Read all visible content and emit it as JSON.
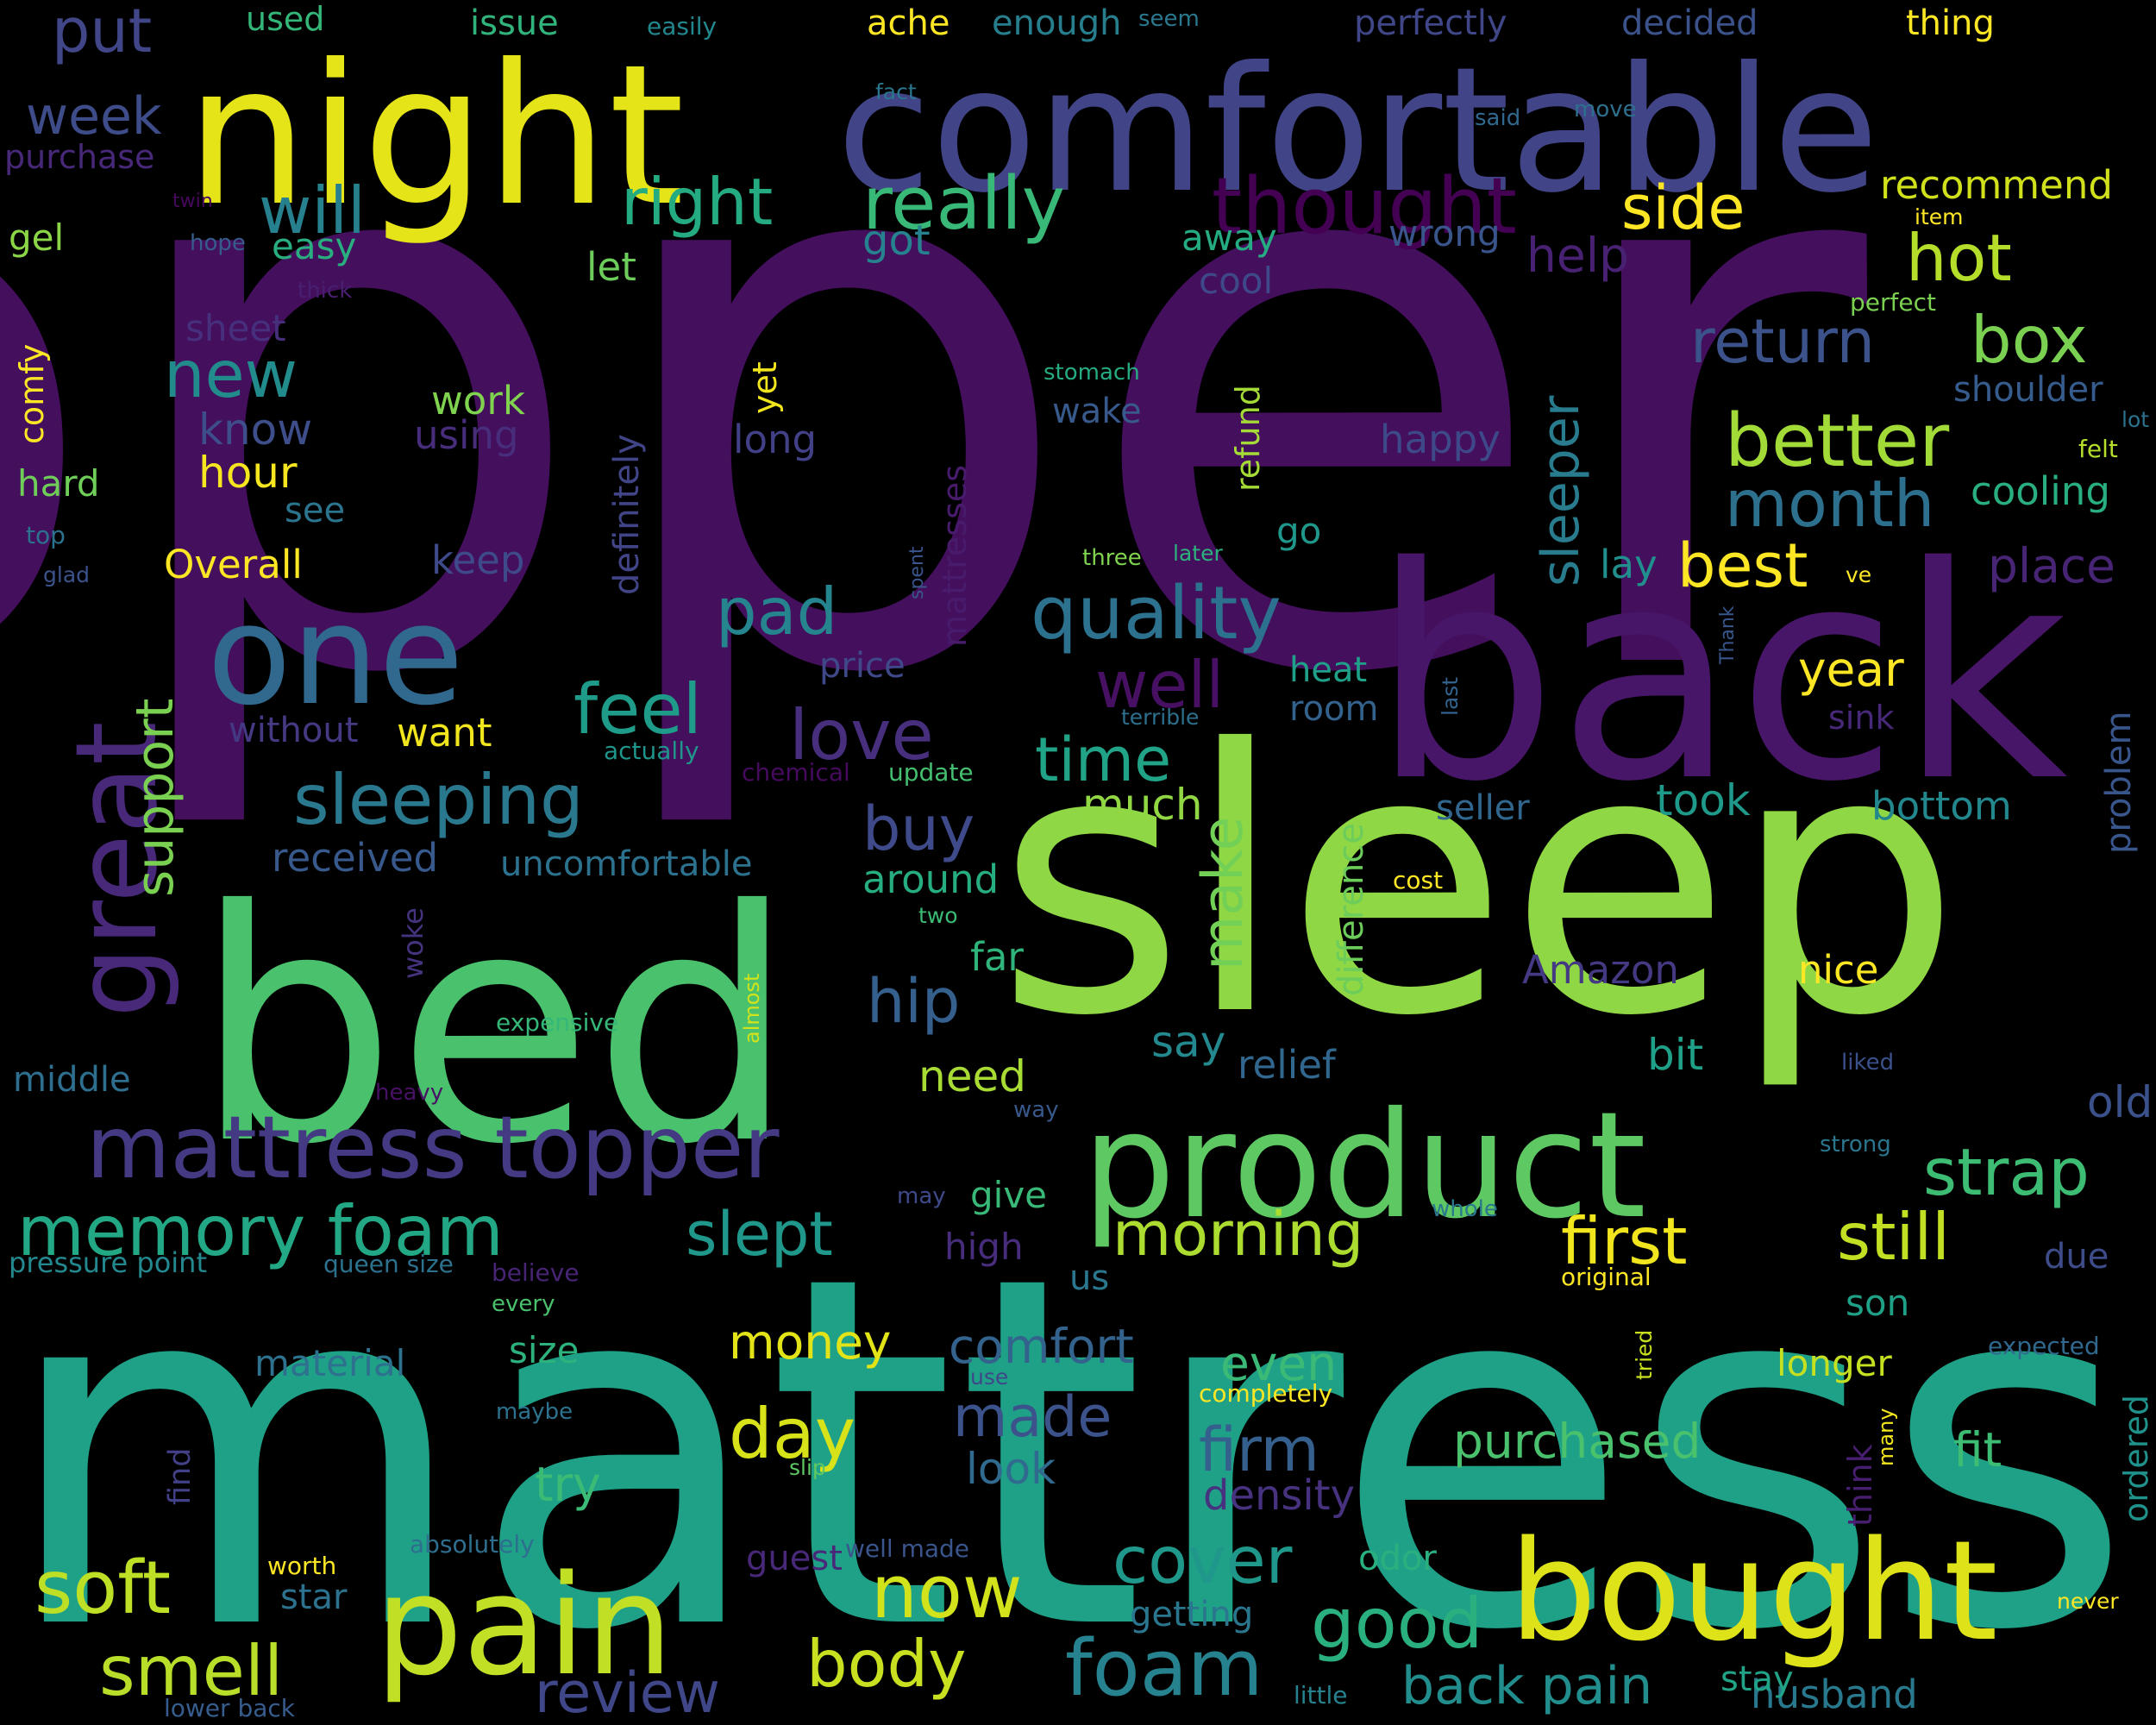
{
  "background": "#000000",
  "words": [
    {
      "text": "topper",
      "weight": 1.0,
      "color": "#440f5d"
    },
    {
      "text": "mattress",
      "weight": 0.92,
      "color": "#1fa188"
    },
    {
      "text": "sleep",
      "weight": 0.74,
      "color": "#8fd744"
    },
    {
      "text": "bed",
      "weight": 0.62,
      "color": "#4ac16d"
    },
    {
      "text": "back",
      "weight": 0.56,
      "color": "#481668"
    },
    {
      "text": "night",
      "weight": 0.5,
      "color": "#e5e419"
    },
    {
      "text": "comfortable",
      "weight": 0.48,
      "color": "#414487"
    },
    {
      "text": "product",
      "weight": 0.4,
      "color": "#5ec962"
    },
    {
      "text": "bought",
      "weight": 0.36,
      "color": "#dde318"
    },
    {
      "text": "pain",
      "weight": 0.36,
      "color": "#c0df25"
    },
    {
      "text": "one",
      "weight": 0.34,
      "color": "#31688e"
    },
    {
      "text": "great",
      "weight": 0.28,
      "color": "#482878"
    },
    {
      "text": "mattress topper",
      "weight": 0.2,
      "color": "#443a83"
    },
    {
      "text": "thought",
      "weight": 0.18,
      "color": "#440154"
    },
    {
      "text": "really",
      "weight": 0.17,
      "color": "#38b977"
    },
    {
      "text": "better",
      "weight": 0.17,
      "color": "#a2da37"
    },
    {
      "text": "memory foam",
      "weight": 0.16,
      "color": "#22a884"
    },
    {
      "text": "foam",
      "weight": 0.18,
      "color": "#26828e"
    },
    {
      "text": "quality",
      "weight": 0.16,
      "color": "#2c728e"
    },
    {
      "text": "sleeping",
      "weight": 0.16,
      "color": "#2a788e"
    },
    {
      "text": "hot",
      "weight": 0.15,
      "color": "#b5de2b"
    },
    {
      "text": "well",
      "weight": 0.15,
      "color": "#471063"
    },
    {
      "text": "right",
      "weight": 0.15,
      "color": "#25ab82"
    },
    {
      "text": "box",
      "weight": 0.15,
      "color": "#7ad151"
    },
    {
      "text": "pad",
      "weight": 0.15,
      "color": "#25848e"
    },
    {
      "text": "love",
      "weight": 0.15,
      "color": "#472f7d"
    },
    {
      "text": "feel",
      "weight": 0.15,
      "color": "#1e9c89"
    },
    {
      "text": "good",
      "weight": 0.15,
      "color": "#2ab07f"
    },
    {
      "text": "cover",
      "weight": 0.15,
      "color": "#1f988b"
    },
    {
      "text": "now",
      "weight": 0.15,
      "color": "#d2e21b"
    },
    {
      "text": "soft",
      "weight": 0.15,
      "color": "#bddf26"
    },
    {
      "text": "smell",
      "weight": 0.14,
      "color": "#b8de29"
    },
    {
      "text": "first",
      "weight": 0.14,
      "color": "#f1e51d"
    },
    {
      "text": "still",
      "weight": 0.14,
      "color": "#c2df23"
    },
    {
      "text": "morning",
      "weight": 0.14,
      "color": "#addc30"
    },
    {
      "text": "strap",
      "weight": 0.14,
      "color": "#3dbc74"
    },
    {
      "text": "month",
      "weight": 0.14,
      "color": "#2d708e"
    },
    {
      "text": "side",
      "weight": 0.14,
      "color": "#fde725"
    },
    {
      "text": "best",
      "weight": 0.13,
      "color": "#fde725"
    },
    {
      "text": "return",
      "weight": 0.13,
      "color": "#3b528b"
    },
    {
      "text": "sleeper",
      "weight": 0.13,
      "color": "#287c8e"
    },
    {
      "text": "time",
      "weight": 0.13,
      "color": "#20a386"
    },
    {
      "text": "new",
      "weight": 0.13,
      "color": "#228c8d"
    },
    {
      "text": "will",
      "weight": 0.13,
      "color": "#27808e"
    },
    {
      "text": "hip",
      "weight": 0.12,
      "color": "#35608d"
    },
    {
      "text": "make",
      "weight": 0.12,
      "color": "#73d056"
    },
    {
      "text": "day",
      "weight": 0.12,
      "color": "#d8e219"
    },
    {
      "text": "firm",
      "weight": 0.12,
      "color": "#355f8d"
    },
    {
      "text": "made",
      "weight": 0.12,
      "color": "#3b528b"
    },
    {
      "text": "slept",
      "weight": 0.12,
      "color": "#1f978b"
    },
    {
      "text": "back pain",
      "weight": 0.11,
      "color": "#228d8d"
    },
    {
      "text": "review",
      "weight": 0.11,
      "color": "#3f4788"
    },
    {
      "text": "body",
      "weight": 0.11,
      "color": "#c8e020"
    },
    {
      "text": "buy",
      "weight": 0.11,
      "color": "#3e4a89"
    },
    {
      "text": "support",
      "weight": 0.11,
      "color": "#7ad151"
    },
    {
      "text": "put",
      "weight": 0.1,
      "color": "#404688"
    },
    {
      "text": "week",
      "weight": 0.1,
      "color": "#3e4c8a"
    },
    {
      "text": "year",
      "weight": 0.09,
      "color": "#fde725"
    },
    {
      "text": "purchased",
      "weight": 0.09,
      "color": "#4ac16d"
    },
    {
      "text": "money",
      "weight": 0.09,
      "color": "#e2e418"
    },
    {
      "text": "comfort",
      "weight": 0.09,
      "color": "#33638d"
    },
    {
      "text": "place",
      "weight": 0.09,
      "color": "#482475"
    },
    {
      "text": "fit",
      "weight": 0.09,
      "color": "#3dbc74"
    },
    {
      "text": "husband",
      "weight": 0.08,
      "color": "#29798e"
    },
    {
      "text": "even",
      "weight": 0.08,
      "color": "#3aba76"
    },
    {
      "text": "try",
      "weight": 0.08,
      "color": "#3bbb75"
    },
    {
      "text": "density",
      "weight": 0.08,
      "color": "#46327e"
    },
    {
      "text": "look",
      "weight": 0.08,
      "color": "#306a8e"
    },
    {
      "text": "need",
      "weight": 0.08,
      "color": "#a8db34"
    },
    {
      "text": "say",
      "weight": 0.08,
      "color": "#23898e"
    },
    {
      "text": "much",
      "weight": 0.08,
      "color": "#90d743"
    },
    {
      "text": "took",
      "weight": 0.08,
      "color": "#1f9a8a"
    },
    {
      "text": "bottom",
      "weight": 0.08,
      "color": "#23888e"
    },
    {
      "text": "received",
      "weight": 0.08,
      "color": "#38598c"
    },
    {
      "text": "uncomfortable",
      "weight": 0.07,
      "color": "#2c728e"
    },
    {
      "text": "around",
      "weight": 0.07,
      "color": "#26ad81"
    },
    {
      "text": "problem",
      "weight": 0.07,
      "color": "#39568c"
    },
    {
      "text": "old",
      "weight": 0.07,
      "color": "#3b518b"
    },
    {
      "text": "nice",
      "weight": 0.07,
      "color": "#fde725"
    },
    {
      "text": "Amazon",
      "weight": 0.07,
      "color": "#443983"
    },
    {
      "text": "bit",
      "weight": 0.07,
      "color": "#1fa088"
    },
    {
      "text": "relief",
      "weight": 0.07,
      "color": "#31678e"
    },
    {
      "text": "far",
      "weight": 0.07,
      "color": "#2fb47c"
    },
    {
      "text": "difference",
      "weight": 0.07,
      "color": "#6ccd5a"
    },
    {
      "text": "son",
      "weight": 0.07,
      "color": "#1fa187"
    },
    {
      "text": "longer",
      "weight": 0.07,
      "color": "#c5e021"
    },
    {
      "text": "ordered",
      "weight": 0.07,
      "color": "#20928c"
    },
    {
      "text": "think",
      "weight": 0.07,
      "color": "#481f70"
    },
    {
      "text": "hour",
      "weight": 0.07,
      "color": "#f6e620"
    },
    {
      "text": "know",
      "weight": 0.07,
      "color": "#3d4e8a"
    },
    {
      "text": "work",
      "weight": 0.07,
      "color": "#7fd34e"
    },
    {
      "text": "using",
      "weight": 0.07,
      "color": "#472d7b"
    },
    {
      "text": "long",
      "weight": 0.07,
      "color": "#424086"
    },
    {
      "text": "wake",
      "weight": 0.07,
      "color": "#38598c"
    },
    {
      "text": "happy",
      "weight": 0.07,
      "color": "#3e4989"
    },
    {
      "text": "lay",
      "weight": 0.07,
      "color": "#218f8d"
    },
    {
      "text": "definitely",
      "weight": 0.07,
      "color": "#414487"
    },
    {
      "text": "refund",
      "weight": 0.06,
      "color": "#a5db36"
    },
    {
      "text": "yet",
      "weight": 0.06,
      "color": "#f1e51d"
    },
    {
      "text": "mattresses",
      "weight": 0.06,
      "color": "#481b6d"
    },
    {
      "text": "Overall",
      "weight": 0.06,
      "color": "#fde725"
    },
    {
      "text": "keep",
      "weight": 0.06,
      "color": "#3e4a89"
    },
    {
      "text": "see",
      "weight": 0.06,
      "color": "#2b748e"
    },
    {
      "text": "hard",
      "weight": 0.06,
      "color": "#6ece58"
    },
    {
      "text": "comfy",
      "weight": 0.06,
      "color": "#fde725"
    },
    {
      "text": "sheet",
      "weight": 0.06,
      "color": "#46307e"
    },
    {
      "text": "easy",
      "weight": 0.06,
      "color": "#29af7f"
    },
    {
      "text": "gel",
      "weight": 0.06,
      "color": "#8bd646"
    },
    {
      "text": "got",
      "weight": 0.06,
      "color": "#26828e"
    },
    {
      "text": "let",
      "weight": 0.06,
      "color": "#6ccd5a"
    },
    {
      "text": "away",
      "weight": 0.06,
      "color": "#25ac82"
    },
    {
      "text": "cool",
      "weight": 0.06,
      "color": "#3e4989"
    },
    {
      "text": "help",
      "weight": 0.06,
      "color": "#482173"
    },
    {
      "text": "wrong",
      "weight": 0.06,
      "color": "#3a548c"
    },
    {
      "text": "recommend",
      "weight": 0.06,
      "color": "#d0e11c"
    },
    {
      "text": "shoulder",
      "weight": 0.06,
      "color": "#365c8d"
    },
    {
      "text": "cooling",
      "weight": 0.06,
      "color": "#29af7f"
    },
    {
      "text": "heat",
      "weight": 0.06,
      "color": "#1fa088"
    },
    {
      "text": "room",
      "weight": 0.06,
      "color": "#33628d"
    },
    {
      "text": "want",
      "weight": 0.06,
      "color": "#f1e51d"
    },
    {
      "text": "without",
      "weight": 0.06,
      "color": "#443983"
    },
    {
      "text": "price",
      "weight": 0.06,
      "color": "#3f4889"
    },
    {
      "text": "seller",
      "weight": 0.06,
      "color": "#31678e"
    },
    {
      "text": "go",
      "weight": 0.06,
      "color": "#1f988b"
    },
    {
      "text": "sink",
      "weight": 0.06,
      "color": "#482878"
    },
    {
      "text": "material",
      "weight": 0.06,
      "color": "#2d718e"
    },
    {
      "text": "size",
      "weight": 0.06,
      "color": "#2db27d"
    },
    {
      "text": "middle",
      "weight": 0.06,
      "color": "#2e6e8e"
    },
    {
      "text": "star",
      "weight": 0.06,
      "color": "#2c728e"
    },
    {
      "text": "getting",
      "weight": 0.06,
      "color": "#2a768e"
    },
    {
      "text": "odor",
      "weight": 0.06,
      "color": "#2ab07f"
    },
    {
      "text": "stay",
      "weight": 0.06,
      "color": "#20a386"
    },
    {
      "text": "give",
      "weight": 0.06,
      "color": "#38b977"
    },
    {
      "text": "high",
      "weight": 0.06,
      "color": "#472d7b"
    },
    {
      "text": "us",
      "weight": 0.06,
      "color": "#2a788e"
    },
    {
      "text": "due",
      "weight": 0.06,
      "color": "#3e4c8a"
    },
    {
      "text": "guest",
      "weight": 0.06,
      "color": "#482878"
    },
    {
      "text": "find",
      "weight": 0.05,
      "color": "#424086"
    },
    {
      "text": "woke",
      "weight": 0.05,
      "color": "#46337f"
    },
    {
      "text": "ache",
      "weight": 0.05,
      "color": "#fde725"
    },
    {
      "text": "enough",
      "weight": 0.05,
      "color": "#277f8e"
    },
    {
      "text": "used",
      "weight": 0.05,
      "color": "#34b679"
    },
    {
      "text": "issue",
      "weight": 0.05,
      "color": "#30b47c"
    },
    {
      "text": "perfectly",
      "weight": 0.05,
      "color": "#3f4788"
    },
    {
      "text": "decided",
      "weight": 0.05,
      "color": "#3b528b"
    },
    {
      "text": "thing",
      "weight": 0.05,
      "color": "#fde725"
    },
    {
      "text": "purchase",
      "weight": 0.05,
      "color": "#482878"
    },
    {
      "text": "pressure point",
      "weight": 0.04,
      "color": "#23898e"
    },
    {
      "text": "queen size",
      "weight": 0.04,
      "color": "#2c728e"
    },
    {
      "text": "worth",
      "weight": 0.04,
      "color": "#fde725"
    },
    {
      "text": "absolutely",
      "weight": 0.04,
      "color": "#2e6e8e"
    },
    {
      "text": "well made",
      "weight": 0.04,
      "color": "#3a548c"
    },
    {
      "text": "lower back",
      "weight": 0.04,
      "color": "#365d8d"
    },
    {
      "text": "little",
      "weight": 0.04,
      "color": "#26828e"
    },
    {
      "text": "expensive",
      "weight": 0.04,
      "color": "#35b779"
    },
    {
      "text": "believe",
      "weight": 0.04,
      "color": "#482475"
    },
    {
      "text": "every",
      "weight": 0.04,
      "color": "#4ac16d"
    },
    {
      "text": "original",
      "weight": 0.04,
      "color": "#fde725"
    },
    {
      "text": "completely",
      "weight": 0.04,
      "color": "#fde725"
    },
    {
      "text": "maybe",
      "weight": 0.04,
      "color": "#2c728e"
    },
    {
      "text": "slip",
      "weight": 0.04,
      "color": "#5ec962"
    },
    {
      "text": "use",
      "weight": 0.04,
      "color": "#3f4788"
    },
    {
      "text": "tried",
      "weight": 0.04,
      "color": "#c8e020"
    },
    {
      "text": "many",
      "weight": 0.04,
      "color": "#f1e51d"
    },
    {
      "text": "expected",
      "weight": 0.04,
      "color": "#31688e"
    },
    {
      "text": "never",
      "weight": 0.04,
      "color": "#fde725"
    },
    {
      "text": "may",
      "weight": 0.04,
      "color": "#3e4a89"
    },
    {
      "text": "whole",
      "weight": 0.04,
      "color": "#2a788e"
    },
    {
      "text": "strong",
      "weight": 0.04,
      "color": "#2a768e"
    },
    {
      "text": "liked",
      "weight": 0.04,
      "color": "#3b518b"
    },
    {
      "text": "way",
      "weight": 0.04,
      "color": "#38588c"
    },
    {
      "text": "heavy",
      "weight": 0.04,
      "color": "#471164"
    },
    {
      "text": "almost",
      "weight": 0.04,
      "color": "#d2e21b"
    },
    {
      "text": "two",
      "weight": 0.04,
      "color": "#3bbb75"
    },
    {
      "text": "cost",
      "weight": 0.04,
      "color": "#fde725"
    },
    {
      "text": "update",
      "weight": 0.04,
      "color": "#44bf70"
    },
    {
      "text": "actually",
      "weight": 0.04,
      "color": "#1f958b"
    },
    {
      "text": "chemical",
      "weight": 0.04,
      "color": "#460b5e"
    },
    {
      "text": "terrible",
      "weight": 0.04,
      "color": "#2d708e"
    },
    {
      "text": "last",
      "weight": 0.04,
      "color": "#33638d"
    },
    {
      "text": "Thank",
      "weight": 0.04,
      "color": "#39568c"
    },
    {
      "text": "ve",
      "weight": 0.04,
      "color": "#fde725"
    },
    {
      "text": "three",
      "weight": 0.04,
      "color": "#7fd34e"
    },
    {
      "text": "later",
      "weight": 0.04,
      "color": "#2db27d"
    },
    {
      "text": "spent",
      "weight": 0.04,
      "color": "#3a548c"
    },
    {
      "text": "stomach",
      "weight": 0.04,
      "color": "#25ab82"
    },
    {
      "text": "thick",
      "weight": 0.04,
      "color": "#481f70"
    },
    {
      "text": "hope",
      "weight": 0.04,
      "color": "#365c8d"
    },
    {
      "text": "twin",
      "weight": 0.04,
      "color": "#46085c"
    },
    {
      "text": "top",
      "weight": 0.04,
      "color": "#2c728e"
    },
    {
      "text": "glad",
      "weight": 0.04,
      "color": "#3b528b"
    },
    {
      "text": "fact",
      "weight": 0.04,
      "color": "#2a768e"
    },
    {
      "text": "said",
      "weight": 0.04,
      "color": "#31688e"
    },
    {
      "text": "move",
      "weight": 0.04,
      "color": "#2d708e"
    },
    {
      "text": "seem",
      "weight": 0.04,
      "color": "#2a788e"
    },
    {
      "text": "easily",
      "weight": 0.04,
      "color": "#23888e"
    },
    {
      "text": "item",
      "weight": 0.04,
      "color": "#fde725"
    },
    {
      "text": "perfect",
      "weight": 0.04,
      "color": "#7ad151"
    },
    {
      "text": "lot",
      "weight": 0.04,
      "color": "#2c728e"
    },
    {
      "text": "felt",
      "weight": 0.04,
      "color": "#b5de2b"
    }
  ]
}
